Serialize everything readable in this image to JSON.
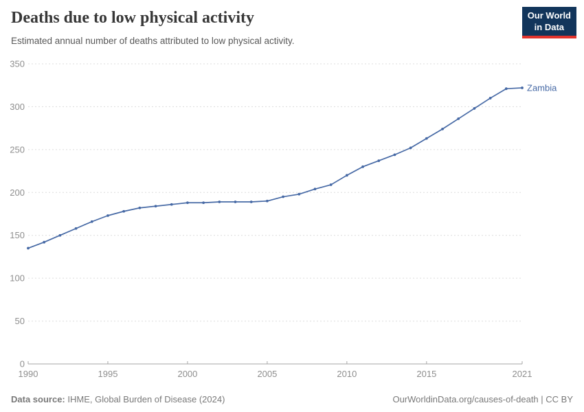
{
  "header": {
    "title": "Deaths due to low physical activity",
    "subtitle": "Estimated annual number of deaths attributed to low physical activity.",
    "logo": {
      "line1": "Our World",
      "line2": "in Data",
      "bg_color": "#12355B",
      "accent_color": "#E2342D"
    }
  },
  "chart_data": {
    "type": "line",
    "title": "Deaths due to low physical activity",
    "xlabel": "",
    "ylabel": "",
    "xlim": [
      1990,
      2021
    ],
    "ylim": [
      0,
      350
    ],
    "x_ticks": [
      1990,
      1995,
      2000,
      2005,
      2010,
      2015,
      2021
    ],
    "y_ticks": [
      0,
      50,
      100,
      150,
      200,
      250,
      300,
      350
    ],
    "grid": "horizontal-dashed",
    "legend_position": "end-of-line",
    "colors": {
      "gridline": "#dcdcdc",
      "axis": "#a5a5a5",
      "tick_label": "#8e8e8e"
    },
    "series": [
      {
        "name": "Zambia",
        "color": "#4669A5",
        "x": [
          1990,
          1991,
          1992,
          1993,
          1994,
          1995,
          1996,
          1997,
          1998,
          1999,
          2000,
          2001,
          2002,
          2003,
          2004,
          2005,
          2006,
          2007,
          2008,
          2009,
          2010,
          2011,
          2012,
          2013,
          2014,
          2015,
          2016,
          2017,
          2018,
          2019,
          2020,
          2021
        ],
        "values": [
          135,
          142,
          150,
          158,
          166,
          173,
          178,
          182,
          184,
          186,
          188,
          188,
          189,
          189,
          189,
          190,
          195,
          198,
          204,
          209,
          220,
          230,
          237,
          244,
          252,
          263,
          274,
          286,
          298,
          310,
          321,
          322
        ]
      }
    ]
  },
  "footer": {
    "source_label": "Data source:",
    "source_text": " IHME, Global Burden of Disease (2024)",
    "right_text": "OurWorldinData.org/causes-of-death | CC BY"
  }
}
